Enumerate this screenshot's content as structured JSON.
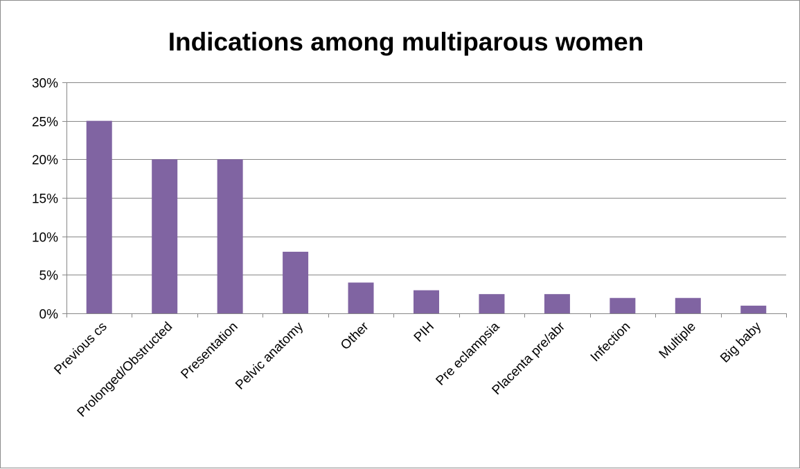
{
  "colors": {
    "bar": "#8064a2",
    "gridline": "#868686",
    "axis": "#868686",
    "text": "#000000",
    "border": "#8c8c8c"
  },
  "chart_data": {
    "type": "bar",
    "title": "Indications among multiparous women",
    "xlabel": "",
    "ylabel": "",
    "categories": [
      "Previous cs",
      "Prolonged/Obstructed",
      "Presentation",
      "Pelvic anatomy",
      "Other",
      "PIH",
      "Pre eclampsia",
      "Placenta pre/abr",
      "Infection",
      "Multiple",
      "Big baby"
    ],
    "values": [
      25,
      20,
      20,
      8,
      4,
      3,
      2.5,
      2.5,
      2,
      2,
      1
    ],
    "value_unit": "%",
    "ylim": [
      0,
      30
    ],
    "yticks": [
      0,
      5,
      10,
      15,
      20,
      25,
      30
    ],
    "ytick_labels": [
      "0%",
      "5%",
      "10%",
      "15%",
      "20%",
      "25%",
      "30%"
    ],
    "grid": true,
    "legend": "none"
  }
}
